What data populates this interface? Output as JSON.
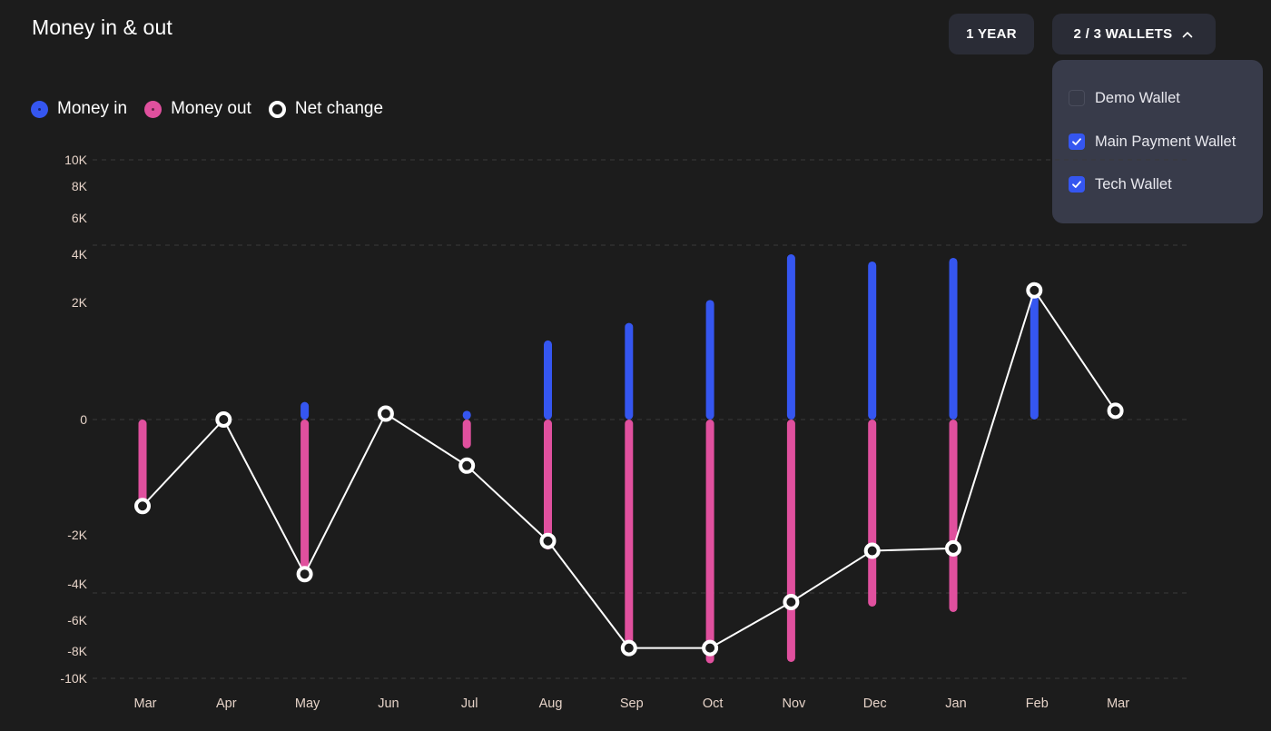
{
  "header": {
    "title": "Money in & out",
    "period_button": "1 YEAR",
    "wallets_button": "2 / 3 WALLETS"
  },
  "wallets_dropdown": {
    "items": [
      {
        "label": "Demo Wallet",
        "checked": false
      },
      {
        "label": "Main Payment Wallet",
        "checked": true
      },
      {
        "label": "Tech Wallet",
        "checked": true
      }
    ]
  },
  "legend": [
    {
      "label": "Money in",
      "color": "#3556f0",
      "style": "filled"
    },
    {
      "label": "Money out",
      "color": "#e0509e",
      "style": "filled"
    },
    {
      "label": "Net change",
      "color": "#ffffff",
      "style": "ring"
    }
  ],
  "colors": {
    "background": "#1c1c1c",
    "money_in": "#3556f0",
    "money_out": "#e0509e",
    "net_change": "#ffffff",
    "tick_text": "#e6d3c8",
    "gridline": "#3a3a3a"
  },
  "chart_data": {
    "type": "bar",
    "title": "Money in & out",
    "xlabel": "",
    "ylabel": "",
    "y_ticks": [
      {
        "label": "10K",
        "value": 10000
      },
      {
        "label": "8K",
        "value": 8000
      },
      {
        "label": "6K",
        "value": 6000
      },
      {
        "label": "4K",
        "value": 4000
      },
      {
        "label": "2K",
        "value": 2000
      },
      {
        "label": "0",
        "value": 0
      },
      {
        "label": "-2K",
        "value": -2000
      },
      {
        "label": "-4K",
        "value": -4000
      },
      {
        "label": "-6K",
        "value": -6000
      },
      {
        "label": "-8K",
        "value": -8000
      },
      {
        "label": "-10K",
        "value": -10000
      }
    ],
    "y_scale": "non-linear (compressed toward extremes)",
    "dashed_gridlines_at": [
      10000,
      4500,
      0,
      -4500,
      -10000
    ],
    "ylim": [
      -10000,
      10000
    ],
    "categories": [
      "Mar",
      "Apr",
      "May",
      "Jun",
      "Jul",
      "Aug",
      "Sep",
      "Oct",
      "Nov",
      "Dec",
      "Jan",
      "Feb",
      "Mar"
    ],
    "series": [
      {
        "name": "Money in",
        "type": "bar",
        "values": [
          0,
          0,
          300,
          0,
          150,
          1350,
          1650,
          2100,
          4000,
          3700,
          3850,
          2500,
          0
        ]
      },
      {
        "name": "Money out",
        "type": "bar",
        "values": [
          -1500,
          0,
          -3550,
          0,
          -500,
          -2600,
          -8250,
          -8900,
          -8800,
          -5250,
          -5550,
          0,
          0
        ]
      },
      {
        "name": "Net change",
        "type": "line",
        "values": [
          -1500,
          0,
          -3600,
          100,
          -800,
          -2250,
          -7800,
          -7800,
          -5000,
          -2650,
          -2550,
          2500,
          150
        ]
      }
    ],
    "grid": true,
    "legend_position": "top-left"
  }
}
